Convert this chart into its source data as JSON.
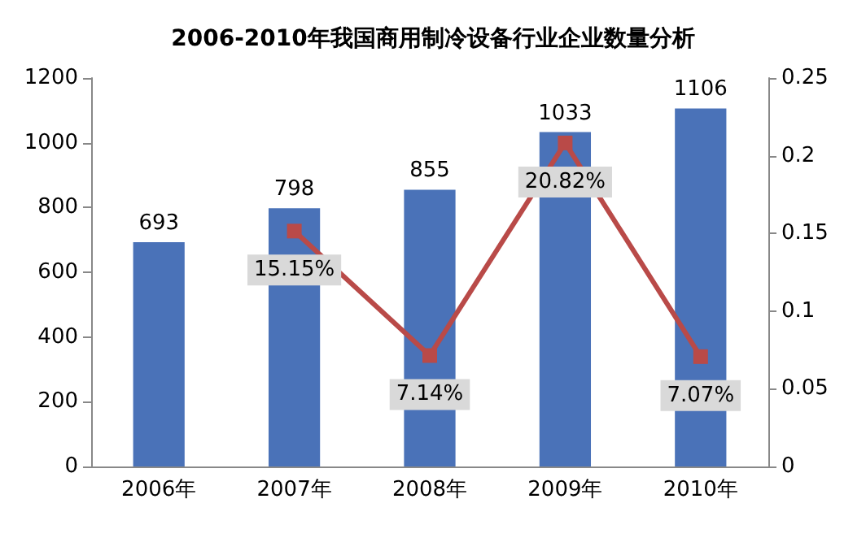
{
  "chart_data": {
    "type": "bar",
    "title": "2006-2010年我国商用制冷设备行业企业数量分析",
    "categories": [
      "2006年",
      "2007年",
      "2008年",
      "2009年",
      "2010年"
    ],
    "series": [
      {
        "color": "#4a72b8",
        "values": [
          693,
          798,
          855,
          1033,
          1106
        ],
        "value_labels": [
          "693",
          "798",
          "855",
          "1033",
          "1106"
        ]
      },
      {
        "type": "line",
        "axis": "y2",
        "color": "#b94a48",
        "values": [
          null,
          0.1515,
          0.0714,
          0.2082,
          0.0707
        ],
        "value_labels": [
          null,
          "15.15%",
          "7.14%",
          "20.82%",
          "7.07%"
        ]
      }
    ],
    "ylim": [
      0,
      1200
    ],
    "yticks": [
      0,
      200,
      400,
      600,
      800,
      1000,
      1200
    ],
    "y2lim": [
      0,
      0.25
    ],
    "y2ticks": [
      0,
      0.05,
      0.1,
      0.15,
      0.2,
      0.25
    ],
    "grid": false,
    "marker": "square",
    "line_style": "solid"
  }
}
